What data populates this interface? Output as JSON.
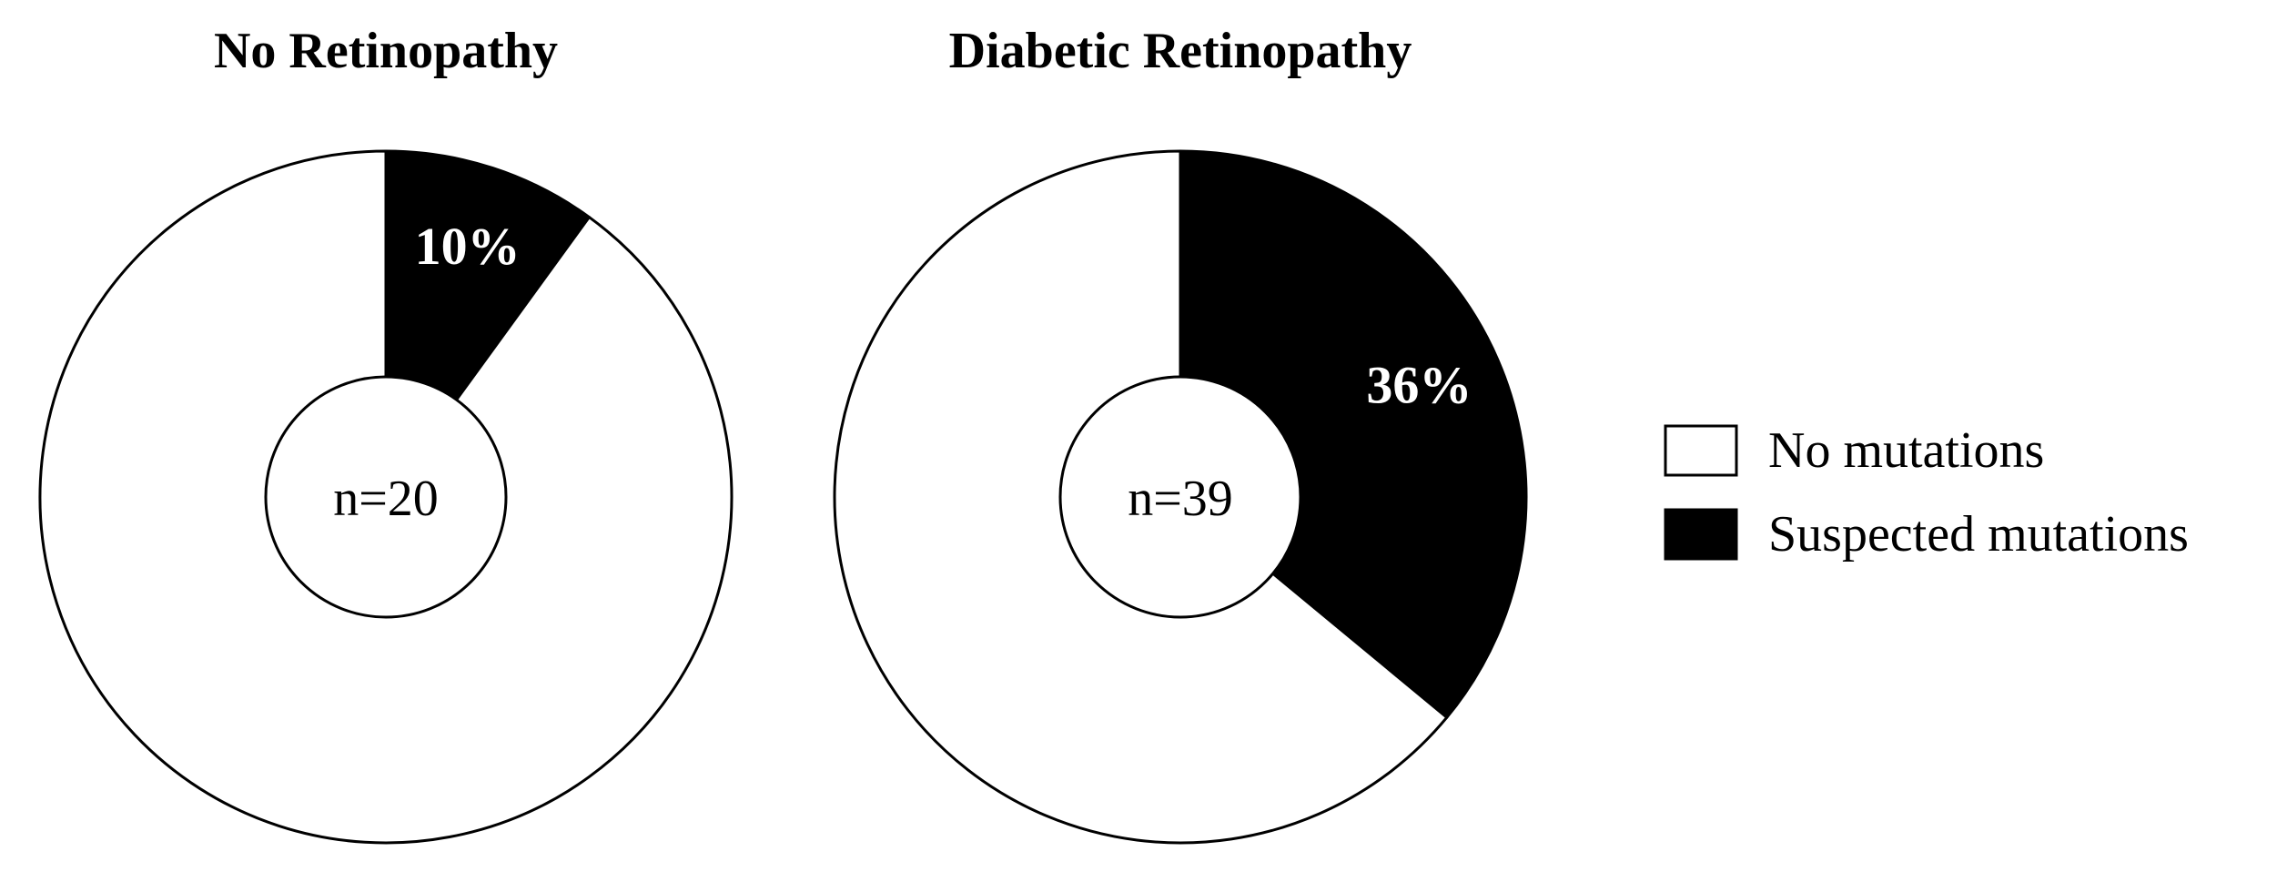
{
  "chart_data": [
    {
      "type": "pie",
      "title": "No Retinopathy",
      "center_label": "n=20",
      "slices": [
        {
          "name": "Suspected mutations",
          "value": 10,
          "label": "10%"
        },
        {
          "name": "No mutations",
          "value": 90,
          "label": ""
        }
      ]
    },
    {
      "type": "pie",
      "title": "Diabetic Retinopathy",
      "center_label": "n=39",
      "slices": [
        {
          "name": "Suspected mutations",
          "value": 36,
          "label": "36%"
        },
        {
          "name": "No mutations",
          "value": 64,
          "label": ""
        }
      ]
    }
  ],
  "legend": {
    "position": "right",
    "items": [
      {
        "label": "No mutations",
        "color": "#ffffff"
      },
      {
        "label": "Suspected mutations",
        "color": "#000000"
      }
    ]
  },
  "colors": {
    "No mutations": "#ffffff",
    "Suspected mutations": "#000000",
    "outline": "#000000"
  }
}
